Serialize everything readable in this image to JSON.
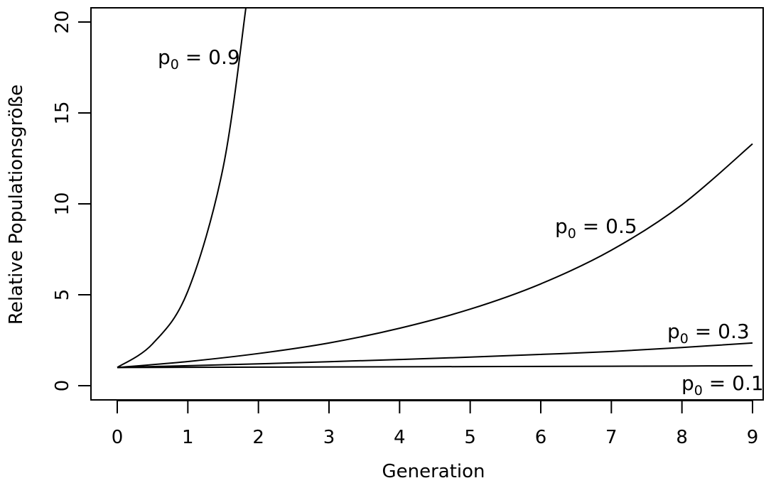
{
  "chart_data": {
    "type": "line",
    "title": "",
    "xlabel": "Generation",
    "ylabel": "Relative Populationsgröße",
    "xlim": [
      0,
      9
    ],
    "ylim": [
      0,
      20
    ],
    "x_ticks": [
      "0",
      "1",
      "2",
      "3",
      "4",
      "5",
      "6",
      "7",
      "8",
      "9"
    ],
    "y_ticks": [
      "0",
      "5",
      "10",
      "15",
      "20"
    ],
    "grid": false,
    "series": [
      {
        "label_prefix": "p",
        "label_sub": "0",
        "label_value": "= 0.9",
        "x": [
          0,
          0.5,
          1,
          1.5,
          1.83
        ],
        "y": [
          1,
          2.3,
          5.2,
          12,
          21
        ]
      },
      {
        "label_prefix": "p",
        "label_sub": "0",
        "label_value": "= 0.5",
        "x": [
          0,
          1,
          2,
          3,
          4,
          5,
          6,
          7,
          8,
          9
        ],
        "y": [
          1,
          1.33,
          1.77,
          2.35,
          3.16,
          4.21,
          5.6,
          7.45,
          9.95,
          13.3
        ]
      },
      {
        "label_prefix": "p",
        "label_sub": "0",
        "label_value": "= 0.3",
        "x": [
          0,
          1,
          2,
          3,
          4,
          5,
          6,
          7,
          8,
          9
        ],
        "y": [
          1,
          1.1,
          1.2,
          1.32,
          1.44,
          1.57,
          1.72,
          1.88,
          2.1,
          2.35
        ]
      },
      {
        "label_prefix": "p",
        "label_sub": "0",
        "label_value": "= 0.1",
        "x": [
          0,
          1,
          2,
          3,
          4,
          5,
          6,
          7,
          8,
          9
        ],
        "y": [
          1,
          1.01,
          1.02,
          1.03,
          1.04,
          1.05,
          1.06,
          1.07,
          1.08,
          1.1
        ]
      }
    ]
  }
}
